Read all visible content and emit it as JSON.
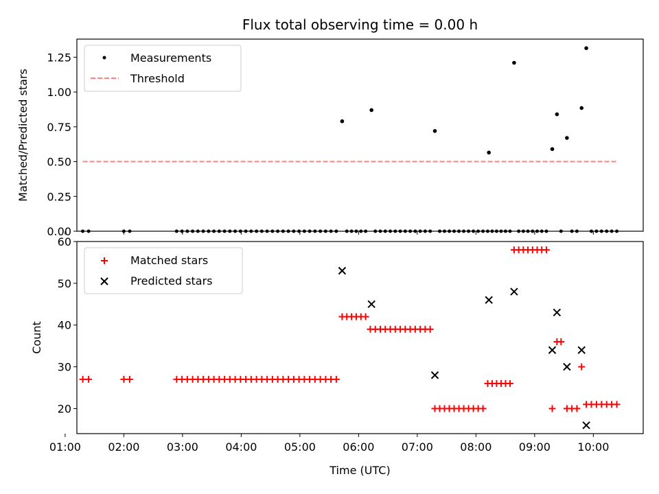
{
  "chart_data": [
    {
      "type": "scatter",
      "title": "Flux total observing time = 0.00 h",
      "xlabel": "",
      "ylabel": "Matched/Predicted stars",
      "xlim": [
        1.2,
        10.85
      ],
      "ylim": [
        0,
        1.38
      ],
      "yticks": [
        "0.00",
        "0.25",
        "0.50",
        "0.75",
        "1.00",
        "1.25"
      ],
      "ytick_values": [
        0,
        0.25,
        0.5,
        0.75,
        1.0,
        1.25
      ],
      "legend": [
        "Measurements",
        "Threshold"
      ],
      "threshold": {
        "value": 0.5,
        "x_start": 1.3,
        "x_end": 10.4,
        "color": "#ff8080"
      },
      "series": [
        {
          "name": "Measurements",
          "x": [
            5.72,
            6.22,
            7.3,
            8.22,
            8.65,
            9.3,
            9.38,
            9.55,
            9.8,
            9.88
          ],
          "y": [
            0.79,
            0.87,
            0.72,
            0.565,
            1.21,
            0.59,
            0.84,
            0.67,
            0.885,
            1.315
          ]
        },
        {
          "name": "Zero measurements",
          "x_ranges": [
            [
              1.3,
              1.4
            ],
            [
              2.0,
              2.1
            ],
            [
              2.9,
              5.62
            ],
            [
              5.78,
              6.12
            ],
            [
              6.28,
              7.22
            ],
            [
              7.38,
              8.12
            ],
            [
              8.28,
              8.58
            ],
            [
              8.72,
              9.2
            ],
            [
              9.45,
              9.5
            ],
            [
              9.62,
              9.72
            ],
            [
              9.95,
              10.4
            ]
          ],
          "y": 0
        }
      ]
    },
    {
      "type": "scatter",
      "title": "",
      "xlabel": "Time (UTC)",
      "ylabel": "Count",
      "xlim": [
        1.2,
        10.85
      ],
      "ylim": [
        14,
        60
      ],
      "yticks": [
        "20",
        "30",
        "40",
        "50",
        "60"
      ],
      "ytick_values": [
        20,
        30,
        40,
        50,
        60
      ],
      "xticks": [
        "01:00",
        "02:00",
        "03:00",
        "04:00",
        "05:00",
        "06:00",
        "07:00",
        "08:00",
        "09:00",
        "10:00"
      ],
      "xtick_values": [
        1,
        2,
        3,
        4,
        5,
        6,
        7,
        8,
        9,
        10
      ],
      "legend": [
        "Matched stars",
        "Predicted stars"
      ],
      "series": [
        {
          "name": "Matched stars",
          "color": "#ff0000",
          "runs": [
            {
              "start": 1.3,
              "end": 1.4,
              "count": 2,
              "y": 27
            },
            {
              "start": 2.0,
              "end": 2.1,
              "count": 2,
              "y": 27
            },
            {
              "start": 2.9,
              "end": 5.62,
              "count": 31,
              "y": 27
            },
            {
              "start": 5.72,
              "end": 6.12,
              "count": 6,
              "y": 42
            },
            {
              "start": 6.2,
              "end": 7.22,
              "count": 13,
              "y": 39
            },
            {
              "start": 7.3,
              "end": 8.12,
              "count": 11,
              "y": 20
            },
            {
              "start": 8.2,
              "end": 8.58,
              "count": 6,
              "y": 26
            },
            {
              "start": 8.65,
              "end": 9.2,
              "count": 8,
              "y": 58
            },
            {
              "start": 9.3,
              "end": 9.3,
              "count": 1,
              "y": 20
            },
            {
              "start": 9.38,
              "end": 9.45,
              "count": 2,
              "y": 36
            },
            {
              "start": 9.55,
              "end": 9.72,
              "count": 3,
              "y": 20
            },
            {
              "start": 9.8,
              "end": 9.8,
              "count": 1,
              "y": 30
            },
            {
              "start": 9.88,
              "end": 10.4,
              "count": 7,
              "y": 21
            }
          ]
        },
        {
          "name": "Predicted stars",
          "color": "#000000",
          "x": [
            5.72,
            6.22,
            7.3,
            8.22,
            8.65,
            9.3,
            9.38,
            9.55,
            9.8,
            9.88
          ],
          "y": [
            53,
            45,
            28,
            46,
            48,
            34,
            43,
            30,
            34,
            16
          ]
        }
      ]
    }
  ]
}
